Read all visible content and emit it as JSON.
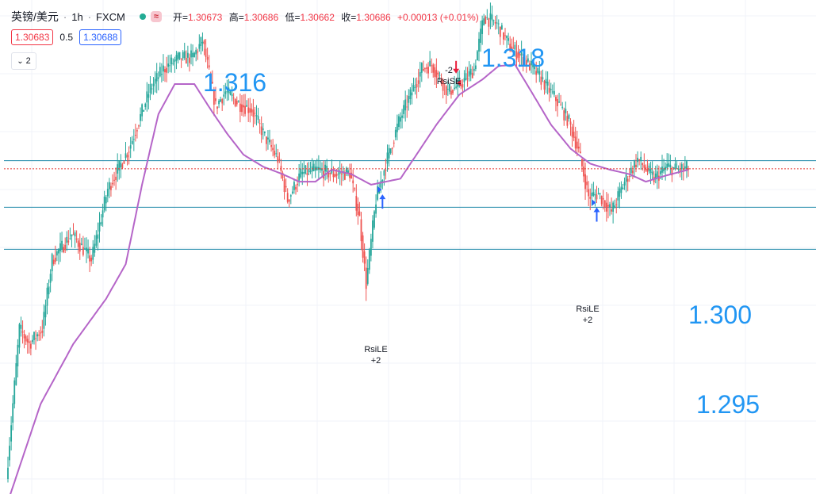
{
  "header": {
    "symbol": "英镑/美元",
    "interval": "1h",
    "exchange": "FXCM",
    "status_icon": "market-open-dot",
    "indicator_icon": "≈",
    "ohlc": {
      "open_label": "开",
      "open": "1.30673",
      "high_label": "高",
      "high": "1.30686",
      "low_label": "低",
      "low": "1.30662",
      "close_label": "收",
      "close": "1.30686",
      "change": "+0.00013 (+0.01%)"
    }
  },
  "trade": {
    "sell_price": "1.30683",
    "spread": "0.5",
    "buy_price": "1.30688"
  },
  "indicators_toggle": {
    "count": "2",
    "icon": "chevron-down-icon"
  },
  "annotations": {
    "peak_left": "1.316",
    "peak_right": "1.318",
    "level_mid": "1.300",
    "level_low": "1.295"
  },
  "signals": [
    {
      "label": "RsiLE",
      "qty": "+2",
      "dir": "long"
    },
    {
      "label": "RsiSE",
      "qty": "-2",
      "dir": "short"
    },
    {
      "label": "RsiLE",
      "qty": "+2",
      "dir": "long"
    }
  ],
  "colors": {
    "up": "#26a69a",
    "down": "#ef5350",
    "ma": "#b565c8",
    "level_line": "#1e88a8",
    "current_price_line": "#e53935",
    "annotation_text": "#2196f3"
  },
  "chart_data": {
    "type": "candlestick",
    "price_path": [
      [
        0,
        1.2862
      ],
      [
        8,
        1.2962
      ],
      [
        14,
        1.2952
      ],
      [
        22,
        1.2962
      ],
      [
        28,
        1.3008
      ],
      [
        40,
        1.3025
      ],
      [
        52,
        1.3008
      ],
      [
        62,
        1.3055
      ],
      [
        75,
        1.3082
      ],
      [
        88,
        1.3122
      ],
      [
        96,
        1.3135
      ],
      [
        105,
        1.3142
      ],
      [
        114,
        1.3143
      ],
      [
        120,
        1.3154
      ],
      [
        128,
        1.311
      ],
      [
        134,
        1.312
      ],
      [
        142,
        1.3112
      ],
      [
        150,
        1.3108
      ],
      [
        158,
        1.309
      ],
      [
        166,
        1.3075
      ],
      [
        172,
        1.3048
      ],
      [
        180,
        1.3065
      ],
      [
        190,
        1.3068
      ],
      [
        200,
        1.3065
      ],
      [
        210,
        1.3066
      ],
      [
        216,
        1.3035
      ],
      [
        220,
        1.2992
      ],
      [
        226,
        1.3048
      ],
      [
        232,
        1.3072
      ],
      [
        240,
        1.31
      ],
      [
        248,
        1.312
      ],
      [
        254,
        1.3135
      ],
      [
        260,
        1.3138
      ],
      [
        270,
        1.312
      ],
      [
        278,
        1.3125
      ],
      [
        286,
        1.3135
      ],
      [
        292,
        1.317
      ],
      [
        300,
        1.3165
      ],
      [
        308,
        1.315
      ],
      [
        318,
        1.314
      ],
      [
        326,
        1.313
      ],
      [
        336,
        1.3115
      ],
      [
        344,
        1.31
      ],
      [
        350,
        1.308
      ],
      [
        356,
        1.305
      ],
      [
        362,
        1.3052
      ],
      [
        370,
        1.304
      ],
      [
        378,
        1.306
      ],
      [
        386,
        1.3075
      ],
      [
        396,
        1.3062
      ],
      [
        404,
        1.307
      ],
      [
        410,
        1.3068
      ],
      [
        416,
        1.3069
      ]
    ],
    "ma_path": [
      [
        0,
        1.2847
      ],
      [
        20,
        1.2912
      ],
      [
        40,
        1.2952
      ],
      [
        60,
        1.2982
      ],
      [
        72,
        1.3005
      ],
      [
        82,
        1.3058
      ],
      [
        92,
        1.3105
      ],
      [
        102,
        1.3125
      ],
      [
        114,
        1.3125
      ],
      [
        124,
        1.3108
      ],
      [
        134,
        1.3092
      ],
      [
        144,
        1.3078
      ],
      [
        156,
        1.307
      ],
      [
        168,
        1.3065
      ],
      [
        178,
        1.306
      ],
      [
        188,
        1.306
      ],
      [
        198,
        1.3068
      ],
      [
        210,
        1.3065
      ],
      [
        222,
        1.3058
      ],
      [
        240,
        1.3062
      ],
      [
        262,
        1.3098
      ],
      [
        276,
        1.3118
      ],
      [
        290,
        1.3128
      ],
      [
        300,
        1.3137
      ],
      [
        310,
        1.3138
      ],
      [
        320,
        1.312
      ],
      [
        332,
        1.3098
      ],
      [
        344,
        1.3082
      ],
      [
        356,
        1.3072
      ],
      [
        368,
        1.3068
      ],
      [
        380,
        1.3065
      ],
      [
        390,
        1.306
      ],
      [
        402,
        1.3064
      ],
      [
        416,
        1.3068
      ]
    ],
    "candle_count": 417,
    "seed": 7,
    "current_price": 1.30686,
    "horizontal_levels": [
      1.3074,
      1.3043,
      1.3015
    ],
    "signals": [
      {
        "type": "long",
        "x": 229,
        "label": "RsiLE",
        "qty": "+2"
      },
      {
        "type": "short",
        "x": 274,
        "label": "RsiSE",
        "qty": "-2"
      },
      {
        "type": "long",
        "x": 360,
        "label": "RsiLE",
        "qty": "+2"
      }
    ],
    "visible_range": {
      "ymin": 1.2852,
      "ymax": 1.3181
    },
    "grid": true
  }
}
